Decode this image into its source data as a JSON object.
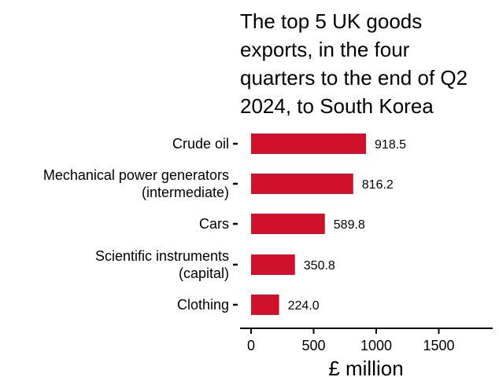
{
  "chart_data": {
    "type": "bar",
    "orientation": "horizontal",
    "title": "The top 5 UK goods exports, in the four quarters to the end of Q2 2024, to South Korea",
    "title_lines": [
      "The top 5 UK goods",
      "exports, in the four",
      "quarters to the end of Q2",
      "2024, to South Korea"
    ],
    "categories": [
      "Crude oil",
      "Mechanical power generators (intermediate)",
      "Cars",
      "Scientific instruments (capital)",
      "Clothing"
    ],
    "category_lines": [
      [
        "Crude oil"
      ],
      [
        "Mechanical power generators",
        "(intermediate)"
      ],
      [
        "Cars"
      ],
      [
        "Scientific instruments",
        "(capital)"
      ],
      [
        "Clothing"
      ]
    ],
    "values": [
      918.5,
      816.2,
      589.8,
      350.8,
      224.0
    ],
    "value_labels": [
      "918.5",
      "816.2",
      "589.8",
      "350.8",
      "224.0"
    ],
    "xlabel": "£ million",
    "ylabel": "",
    "xlim": [
      0,
      1900
    ],
    "xticks": [
      0,
      500,
      1000,
      1500
    ],
    "grid": false,
    "bar_color": "#d0112b"
  }
}
